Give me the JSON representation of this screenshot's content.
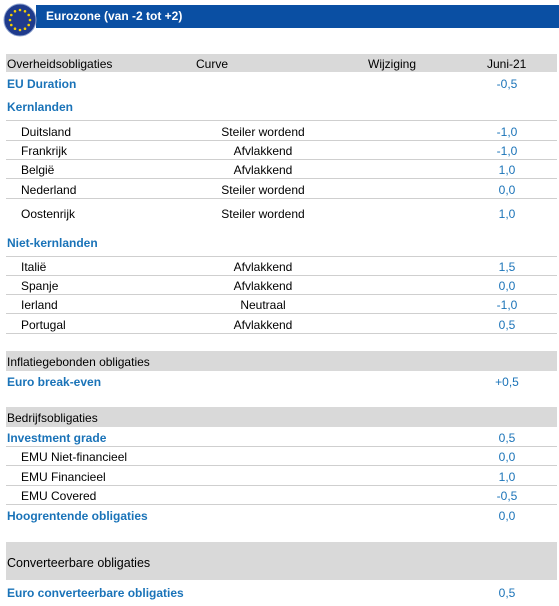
{
  "banner": {
    "title": "Eurozone (van -2 tot +2)"
  },
  "header": {
    "col1": "Overheidsobligaties",
    "col2": "Curve",
    "col3": "Wijziging",
    "col4": "Juni-21"
  },
  "eu_duration": {
    "label": "EU Duration",
    "value": "-0,5"
  },
  "kernlanden": {
    "title": "Kernlanden",
    "rows": [
      {
        "name": "Duitsland",
        "curve": "Steiler wordend",
        "value": "-1,0"
      },
      {
        "name": "Frankrijk",
        "curve": "Afvlakkend",
        "value": "-1,0"
      },
      {
        "name": "België",
        "curve": "Afvlakkend",
        "value": "1,0"
      },
      {
        "name": "Nederland",
        "curve": "Steiler wordend",
        "value": "0,0"
      },
      {
        "name": "Oostenrijk",
        "curve": "Steiler wordend",
        "value": "1,0"
      }
    ]
  },
  "niet_kernlanden": {
    "title": "Niet-kernlanden",
    "rows": [
      {
        "name": "Italië",
        "curve": "Afvlakkend",
        "value": "1,5"
      },
      {
        "name": "Spanje",
        "curve": "Afvlakkend",
        "value": "0,0"
      },
      {
        "name": "Ierland",
        "curve": "Neutraal",
        "value": "-1,0"
      },
      {
        "name": "Portugal",
        "curve": "Afvlakkend",
        "value": "0,5"
      }
    ]
  },
  "inflatie": {
    "title": "Inflatiegebonden obligaties",
    "label": "Euro break-even",
    "value": "+0,5"
  },
  "bedrijf": {
    "title": "Bedrijfsobligaties",
    "investment_grade": {
      "label": "Investment grade",
      "value": "0,5"
    },
    "rows": [
      {
        "name": "EMU Niet-financieel",
        "value": "0,0"
      },
      {
        "name": "EMU Financieel",
        "value": "1,0"
      },
      {
        "name": "EMU Covered",
        "value": "-0,5"
      }
    ],
    "hoogrentende": {
      "label": "Hoogrentende obligaties",
      "value": "0,0"
    }
  },
  "converteerbaar": {
    "title": "Converteerbare obligaties",
    "label": "Euro converteerbare obligaties",
    "value": "0,5"
  }
}
